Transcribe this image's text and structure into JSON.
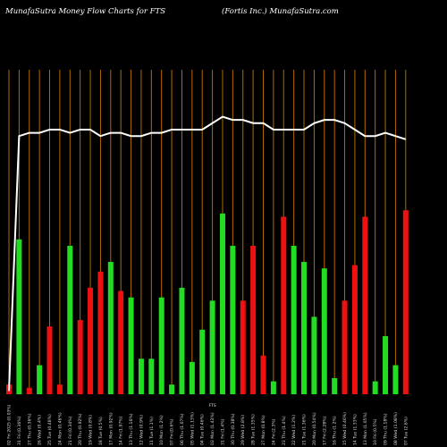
{
  "header": {
    "left": "MunafaSutra  Money Flow  Charts for FTS",
    "right": "(Fortis Inc.) MunafaSutra.com"
  },
  "colors": {
    "background": "#000000",
    "gridline": "#b26b00",
    "up_bar": "#22dd22",
    "down_bar": "#ee1111",
    "line": "#ffffff"
  },
  "chart_data": {
    "type": "bar",
    "title": "MunafaSutra  Money Flow  Charts for FTS",
    "subtitle": "(Fortis Inc.) MunafaSutra.com",
    "categories": [
      "02 Fri 2025 (0.03%)",
      "31 Fri (0.36%)",
      "27 Thu (0.36%)",
      "26 Wed (0.4%)",
      "25 Tue (0.48%)",
      "24 Mon (0.46%)",
      "21 Fri (0.34%)",
      "20 Thu (0.92%)",
      "19 Wed (0.8%)",
      "18 Tue (0.5%)",
      "17 Mon (0.92%)",
      "14 Fri (1.97%)",
      "13 Thu (1.16%)",
      "12 Wed (0.9%)",
      "11 Tue (1.1%)",
      "10 Mon (1.2%)",
      "07 Fri (0.6%)",
      "06 Thu (1.07%)",
      "05 Wed (1.13%)",
      "04 Tue (0.46%)",
      "03 Mon (1.43%)",
      "31 Fri (1.4%)",
      "30 Thu (0.38%)",
      "29 Wed (2.8%)",
      "28 Tue (1.35%)",
      "27 Mon (0.8%)",
      "24 Fri (2.3%)",
      "23 Thu (1.4%)",
      "22 Wed (1.2%)",
      "21 Tue (1.36%)",
      "20 Mon (0.54%)",
      "17 Fri (2.28%)",
      "16 Thu (1.2%)",
      "15 Wed (0.46%)",
      "14 Tue (1.33%)",
      "13 Mon (1.05%)",
      "10 Fri (0.5%)",
      "09 Thu (1.18%)",
      "08 Wed (1.08%)",
      "07 Tue (2.6%)"
    ],
    "x_center_label": "FTS",
    "series": [
      {
        "name": "Money Flow",
        "values": [
          3,
          48,
          2,
          9,
          21,
          3,
          46,
          23,
          33,
          38,
          41,
          32,
          30,
          11,
          11,
          30,
          3,
          33,
          10,
          20,
          29,
          56,
          46,
          29,
          46,
          12,
          4,
          55,
          46,
          41,
          24,
          39,
          5,
          29,
          40,
          55,
          4,
          18,
          9,
          57
        ],
        "up": [
          false,
          true,
          false,
          true,
          false,
          false,
          true,
          false,
          false,
          false,
          true,
          false,
          true,
          true,
          true,
          true,
          true,
          true,
          true,
          true,
          true,
          true,
          true,
          false,
          false,
          false,
          true,
          false,
          true,
          true,
          true,
          true,
          true,
          false,
          false,
          false,
          true,
          true,
          true,
          false
        ]
      }
    ],
    "line_series": {
      "name": "",
      "values": [
        1,
        80,
        81,
        81,
        82,
        82,
        81,
        82,
        82,
        80,
        81,
        81,
        80,
        80,
        81,
        81,
        82,
        82,
        82,
        82,
        84,
        86,
        85,
        85,
        84,
        84,
        82,
        82,
        82,
        82,
        84,
        85,
        85,
        84,
        82,
        80,
        80,
        81,
        80,
        79
      ]
    },
    "ylim": [
      0,
      100
    ],
    "grid": true,
    "legend": "none"
  }
}
